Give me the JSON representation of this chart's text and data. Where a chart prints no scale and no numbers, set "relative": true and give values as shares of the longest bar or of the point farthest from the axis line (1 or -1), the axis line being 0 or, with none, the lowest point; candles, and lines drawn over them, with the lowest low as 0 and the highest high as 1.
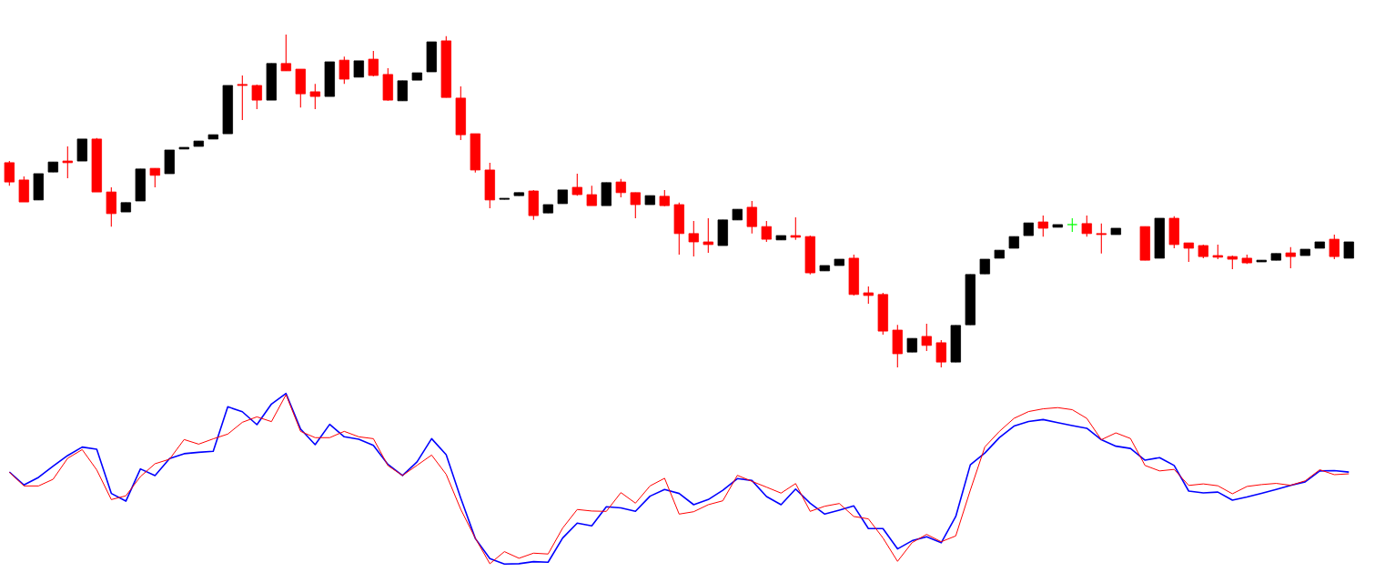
{
  "chart_data": [
    {
      "type": "candlestick",
      "relative": true,
      "categories": [
        null,
        null,
        null,
        null,
        null,
        null,
        null,
        null,
        null,
        null,
        null,
        null,
        null,
        null,
        null,
        null,
        null,
        null,
        null,
        null,
        null,
        null,
        null,
        null,
        null,
        null,
        null,
        null,
        null,
        null,
        null,
        null,
        null,
        null,
        null,
        null,
        null,
        null,
        null,
        null,
        null,
        null,
        null,
        null,
        null,
        null,
        null,
        null,
        null,
        null,
        null,
        null,
        null,
        null,
        null,
        null,
        null,
        null,
        null,
        null,
        null,
        null,
        null,
        null,
        null,
        null,
        null,
        null,
        null,
        null,
        null,
        null,
        null,
        null,
        null,
        null,
        null,
        null,
        null,
        null,
        null,
        null,
        null,
        null,
        null,
        null,
        null,
        null,
        null,
        null,
        null,
        null,
        null
      ],
      "ohlc": [
        [
          0.615,
          0.62,
          0.546,
          0.557
        ],
        [
          0.563,
          0.574,
          0.497,
          0.497
        ],
        [
          0.503,
          0.582,
          0.503,
          0.582
        ],
        [
          0.587,
          0.617,
          0.587,
          0.617
        ],
        [
          0.62,
          0.664,
          0.568,
          0.615
        ],
        [
          0.62,
          0.686,
          0.62,
          0.686
        ],
        [
          0.686,
          0.689,
          0.527,
          0.527
        ],
        [
          0.527,
          0.541,
          0.423,
          0.462
        ],
        [
          0.467,
          0.495,
          0.467,
          0.495
        ],
        [
          0.5,
          0.596,
          0.5,
          0.596
        ],
        [
          0.598,
          0.598,
          0.541,
          0.577
        ],
        [
          0.582,
          0.653,
          0.582,
          0.653
        ],
        [
          0.656,
          0.661,
          0.656,
          0.661
        ],
        [
          0.664,
          0.68,
          0.664,
          0.68
        ],
        [
          0.686,
          0.699,
          0.686,
          0.699
        ],
        [
          0.702,
          0.847,
          0.702,
          0.847
        ],
        [
          0.85,
          0.877,
          0.743,
          0.847
        ],
        [
          0.847,
          0.85,
          0.776,
          0.803
        ],
        [
          0.803,
          0.913,
          0.803,
          0.913
        ],
        [
          0.913,
          1.0,
          0.891,
          0.891
        ],
        [
          0.896,
          0.896,
          0.781,
          0.822
        ],
        [
          0.828,
          0.852,
          0.776,
          0.814
        ],
        [
          0.814,
          0.918,
          0.814,
          0.918
        ],
        [
          0.923,
          0.934,
          0.852,
          0.866
        ],
        [
          0.872,
          0.921,
          0.872,
          0.921
        ],
        [
          0.926,
          0.951,
          0.874,
          0.877
        ],
        [
          0.88,
          0.899,
          0.801,
          0.803
        ],
        [
          0.801,
          0.861,
          0.801,
          0.861
        ],
        [
          0.863,
          0.885,
          0.863,
          0.885
        ],
        [
          0.888,
          0.978,
          0.888,
          0.978
        ],
        [
          0.981,
          0.995,
          0.811,
          0.811
        ],
        [
          0.809,
          0.844,
          0.683,
          0.699
        ],
        [
          0.702,
          0.702,
          0.585,
          0.593
        ],
        [
          0.593,
          0.615,
          0.478,
          0.503
        ],
        [
          0.505,
          0.508,
          0.505,
          0.508
        ],
        [
          0.516,
          0.525,
          0.516,
          0.525
        ],
        [
          0.53,
          0.533,
          0.443,
          0.456
        ],
        [
          0.464,
          0.489,
          0.464,
          0.489
        ],
        [
          0.492,
          0.533,
          0.492,
          0.533
        ],
        [
          0.541,
          0.582,
          0.516,
          0.519
        ],
        [
          0.519,
          0.546,
          0.486,
          0.486
        ],
        [
          0.486,
          0.555,
          0.486,
          0.555
        ],
        [
          0.557,
          0.566,
          0.511,
          0.525
        ],
        [
          0.525,
          0.525,
          0.448,
          0.489
        ],
        [
          0.489,
          0.516,
          0.489,
          0.516
        ],
        [
          0.514,
          0.533,
          0.484,
          0.486
        ],
        [
          0.489,
          0.495,
          0.339,
          0.402
        ],
        [
          0.402,
          0.44,
          0.333,
          0.377
        ],
        [
          0.377,
          0.448,
          0.344,
          0.369
        ],
        [
          0.366,
          0.443,
          0.366,
          0.443
        ],
        [
          0.443,
          0.475,
          0.443,
          0.475
        ],
        [
          0.481,
          0.5,
          0.402,
          0.423
        ],
        [
          0.423,
          0.44,
          0.377,
          0.385
        ],
        [
          0.383,
          0.396,
          0.383,
          0.396
        ],
        [
          0.396,
          0.451,
          0.383,
          0.391
        ],
        [
          0.393,
          0.396,
          0.279,
          0.284
        ],
        [
          0.29,
          0.306,
          0.29,
          0.306
        ],
        [
          0.306,
          0.325,
          0.306,
          0.325
        ],
        [
          0.328,
          0.339,
          0.216,
          0.219
        ],
        [
          0.224,
          0.243,
          0.191,
          0.216
        ],
        [
          0.219,
          0.224,
          0.098,
          0.109
        ],
        [
          0.112,
          0.128,
          0.0,
          0.041
        ],
        [
          0.046,
          0.087,
          0.046,
          0.087
        ],
        [
          0.093,
          0.131,
          0.049,
          0.066
        ],
        [
          0.074,
          0.082,
          0.0,
          0.016
        ],
        [
          0.016,
          0.126,
          0.016,
          0.126
        ],
        [
          0.128,
          0.279,
          0.128,
          0.279
        ],
        [
          0.281,
          0.325,
          0.281,
          0.325
        ],
        [
          0.328,
          0.352,
          0.328,
          0.352
        ],
        [
          0.358,
          0.393,
          0.358,
          0.393
        ],
        [
          0.396,
          0.434,
          0.396,
          0.434
        ],
        [
          0.437,
          0.456,
          0.393,
          0.418
        ],
        [
          0.421,
          0.429,
          0.421,
          0.429
        ],
        [
          0.429,
          0.448,
          0.407,
          0.429
        ],
        [
          0.432,
          0.456,
          0.393,
          0.402
        ],
        [
          0.402,
          0.432,
          0.342,
          0.399
        ],
        [
          0.399,
          0.418,
          0.399,
          0.418
        ],
        null,
        [
          0.423,
          0.423,
          0.322,
          0.322
        ],
        [
          0.328,
          0.448,
          0.328,
          0.448
        ],
        [
          0.448,
          0.454,
          0.358,
          0.369
        ],
        [
          0.374,
          0.374,
          0.317,
          0.358
        ],
        [
          0.366,
          0.369,
          0.328,
          0.333
        ],
        [
          0.336,
          0.369,
          0.325,
          0.331
        ],
        [
          0.333,
          0.336,
          0.295,
          0.325
        ],
        [
          0.328,
          0.339,
          0.311,
          0.314
        ],
        [
          0.317,
          0.322,
          0.317,
          0.322
        ],
        [
          0.322,
          0.342,
          0.322,
          0.342
        ],
        [
          0.344,
          0.361,
          0.298,
          0.333
        ],
        [
          0.336,
          0.355,
          0.336,
          0.355
        ],
        [
          0.358,
          0.377,
          0.358,
          0.377
        ],
        [
          0.385,
          0.399,
          0.325,
          0.333
        ],
        [
          0.328,
          0.377,
          0.328,
          0.377
        ]
      ],
      "colors": [
        "#ff0000",
        "#ff0000",
        "#000000",
        "#000000",
        "#ff0000",
        "#000000",
        "#ff0000",
        "#ff0000",
        "#000000",
        "#000000",
        "#ff0000",
        "#000000",
        "#000000",
        "#000000",
        "#000000",
        "#000000",
        "#ff0000",
        "#ff0000",
        "#000000",
        "#ff0000",
        "#ff0000",
        "#ff0000",
        "#000000",
        "#ff0000",
        "#000000",
        "#ff0000",
        "#ff0000",
        "#000000",
        "#000000",
        "#000000",
        "#ff0000",
        "#ff0000",
        "#ff0000",
        "#ff0000",
        "#000000",
        "#000000",
        "#ff0000",
        "#000000",
        "#000000",
        "#ff0000",
        "#ff0000",
        "#000000",
        "#ff0000",
        "#ff0000",
        "#000000",
        "#ff0000",
        "#ff0000",
        "#ff0000",
        "#ff0000",
        "#000000",
        "#000000",
        "#ff0000",
        "#ff0000",
        "#000000",
        "#ff0000",
        "#ff0000",
        "#000000",
        "#000000",
        "#ff0000",
        "#ff0000",
        "#ff0000",
        "#ff0000",
        "#000000",
        "#ff0000",
        "#ff0000",
        "#000000",
        "#000000",
        "#000000",
        "#000000",
        "#000000",
        "#000000",
        "#ff0000",
        "#000000",
        "#00ff00",
        "#ff0000",
        "#ff0000",
        "#000000",
        null,
        "#ff0000",
        "#000000",
        "#ff0000",
        "#ff0000",
        "#ff0000",
        "#ff0000",
        "#ff0000",
        "#ff0000",
        "#000000",
        "#000000",
        "#ff0000",
        "#000000",
        "#000000",
        "#ff0000",
        "#000000"
      ]
    },
    {
      "type": "line",
      "relative": true,
      "categories": [
        null,
        null,
        null,
        null,
        null,
        null,
        null,
        null,
        null,
        null,
        null,
        null,
        null,
        null,
        null,
        null,
        null,
        null,
        null,
        null,
        null,
        null,
        null,
        null,
        null,
        null,
        null,
        null,
        null,
        null,
        null,
        null,
        null,
        null,
        null,
        null,
        null,
        null,
        null,
        null,
        null,
        null,
        null,
        null,
        null,
        null,
        null,
        null,
        null,
        null,
        null,
        null,
        null,
        null,
        null,
        null,
        null,
        null,
        null,
        null,
        null,
        null,
        null,
        null,
        null,
        null,
        null,
        null,
        null,
        null,
        null,
        null,
        null,
        null,
        null,
        null,
        null,
        null,
        null,
        null,
        null,
        null,
        null,
        null,
        null,
        null,
        null,
        null,
        null,
        null,
        null,
        null,
        null
      ],
      "series": [
        {
          "color": "#0000ff",
          "values": [
            0.54,
            0.464,
            0.508,
            0.574,
            0.636,
            0.686,
            0.673,
            0.414,
            0.369,
            0.558,
            0.519,
            0.618,
            0.647,
            0.655,
            0.661,
            0.922,
            0.893,
            0.817,
            0.938,
            1.0,
            0.792,
            0.7,
            0.819,
            0.746,
            0.732,
            0.696,
            0.584,
            0.519,
            0.599,
            0.735,
            0.641,
            0.387,
            0.15,
            0.032,
            0.0,
            0.002,
            0.014,
            0.011,
            0.153,
            0.24,
            0.224,
            0.336,
            0.329,
            0.309,
            0.398,
            0.437,
            0.414,
            0.348,
            0.378,
            0.433,
            0.501,
            0.49,
            0.396,
            0.348,
            0.44,
            0.357,
            0.293,
            0.316,
            0.341,
            0.208,
            0.208,
            0.089,
            0.137,
            0.16,
            0.125,
            0.279,
            0.582,
            0.651,
            0.742,
            0.809,
            0.836,
            0.847,
            0.829,
            0.812,
            0.796,
            0.729,
            0.691,
            0.678,
            0.609,
            0.624,
            0.578,
            0.428,
            0.417,
            0.422,
            0.375,
            0.393,
            0.415,
            0.437,
            0.461,
            0.482,
            0.546,
            0.548,
            0.539
          ]
        },
        {
          "color": "#ff0000",
          "values": [
            0.538,
            0.458,
            0.458,
            0.497,
            0.62,
            0.671,
            0.552,
            0.378,
            0.4,
            0.513,
            0.588,
            0.615,
            0.73,
            0.703,
            0.734,
            0.762,
            0.831,
            0.863,
            0.835,
            0.993,
            0.778,
            0.741,
            0.741,
            0.778,
            0.746,
            0.735,
            0.577,
            0.519,
            0.579,
            0.639,
            0.526,
            0.321,
            0.152,
            0.002,
            0.073,
            0.034,
            0.064,
            0.059,
            0.211,
            0.32,
            0.311,
            0.309,
            0.419,
            0.357,
            0.458,
            0.503,
            0.293,
            0.307,
            0.348,
            0.371,
            0.52,
            0.485,
            0.451,
            0.416,
            0.472,
            0.309,
            0.339,
            0.355,
            0.279,
            0.265,
            0.153,
            0.016,
            0.126,
            0.174,
            0.131,
            0.165,
            0.433,
            0.687,
            0.778,
            0.854,
            0.894,
            0.91,
            0.917,
            0.905,
            0.854,
            0.729,
            0.769,
            0.736,
            0.578,
            0.546,
            0.555,
            0.461,
            0.47,
            0.459,
            0.412,
            0.455,
            0.466,
            0.473,
            0.462,
            0.488,
            0.553,
            0.524,
            0.529
          ]
        }
      ]
    }
  ]
}
